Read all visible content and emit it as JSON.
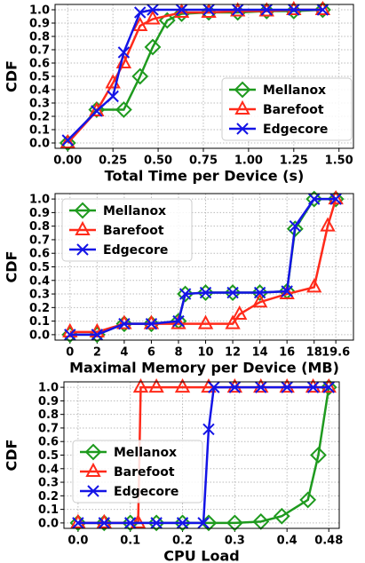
{
  "chart_data": [
    {
      "type": "line",
      "xlabel": "Total Time per Device (s)",
      "ylabel": "CDF",
      "legend": "lower right",
      "grid": true,
      "xlim": [
        -0.07,
        1.58
      ],
      "ylim": [
        -0.04,
        1.04
      ],
      "xticks": [
        {
          "value": 0,
          "label": "0.00"
        },
        {
          "value": 0.25,
          "label": "0.25"
        },
        {
          "value": 0.5,
          "label": "0.50"
        },
        {
          "value": 0.75,
          "label": "0.75"
        },
        {
          "value": 1,
          "label": "1.00"
        },
        {
          "value": 1.25,
          "label": "1.25"
        },
        {
          "value": 1.5,
          "label": "1.50"
        }
      ],
      "yticks": [
        {
          "value": 0,
          "label": "0.0"
        },
        0.1,
        0.2,
        0.3,
        0.4,
        0.5,
        0.6,
        0.7,
        0.8,
        0.9,
        {
          "value": 1,
          "label": "1.0"
        }
      ],
      "series": [
        {
          "name": "Mellanox",
          "color": "#1e9a1e",
          "marker": "diamond",
          "x": [
            0,
            0.16,
            0.31,
            0.4,
            0.47,
            0.55,
            0.63,
            0.78,
            0.94,
            1.1,
            1.25,
            1.41
          ],
          "values": [
            0,
            0.25,
            0.25,
            0.5,
            0.72,
            0.92,
            0.97,
            0.98,
            0.98,
            0.99,
            0.99,
            1.0
          ]
        },
        {
          "name": "Barefoot",
          "color": "#ff2a1a",
          "marker": "triangle",
          "x": [
            0,
            0.16,
            0.25,
            0.31,
            0.4,
            0.47,
            0.63,
            0.78,
            0.94,
            1.1,
            1.25,
            1.41
          ],
          "values": [
            0,
            0.24,
            0.45,
            0.6,
            0.88,
            0.93,
            0.98,
            0.98,
            0.99,
            0.99,
            1.0,
            1.0
          ]
        },
        {
          "name": "Edgecore",
          "color": "#1414e6",
          "marker": "x",
          "x": [
            0,
            0.16,
            0.25,
            0.31,
            0.4,
            0.47,
            0.63,
            0.78,
            0.94,
            1.1,
            1.25,
            1.41
          ],
          "values": [
            0.02,
            0.24,
            0.35,
            0.68,
            0.98,
            1.0,
            1.0,
            1.0,
            1.0,
            1.0,
            1.0,
            1.0
          ]
        }
      ]
    },
    {
      "type": "line",
      "xlabel": "Maximal Memory per Device (MB)",
      "ylabel": "CDF",
      "legend": "upper left",
      "grid": true,
      "xlim": [
        -1.1,
        20.9
      ],
      "ylim": [
        -0.04,
        1.04
      ],
      "xticks": [
        0,
        2,
        4,
        6,
        8,
        10,
        12,
        14,
        16,
        18,
        19.6
      ],
      "yticks": [
        {
          "value": 0,
          "label": "0.0"
        },
        0.1,
        0.2,
        0.3,
        0.4,
        0.5,
        0.6,
        0.7,
        0.8,
        0.9,
        {
          "value": 1,
          "label": "1.0"
        }
      ],
      "series": [
        {
          "name": "Mellanox",
          "color": "#1e9a1e",
          "marker": "diamond",
          "x": [
            0,
            2,
            4,
            6,
            8,
            8.5,
            10,
            12,
            14,
            16,
            16.6,
            18,
            19.6
          ],
          "values": [
            0,
            0,
            0.08,
            0.08,
            0.1,
            0.3,
            0.31,
            0.31,
            0.31,
            0.32,
            0.78,
            1.0,
            1.0
          ]
        },
        {
          "name": "Barefoot",
          "color": "#ff2a1a",
          "marker": "triangle",
          "x": [
            0,
            2,
            4,
            6,
            8,
            10,
            12,
            12.5,
            14,
            16,
            18,
            19,
            19.6
          ],
          "values": [
            0.02,
            0.02,
            0.08,
            0.08,
            0.08,
            0.08,
            0.08,
            0.15,
            0.24,
            0.3,
            0.35,
            0.8,
            1.0
          ]
        },
        {
          "name": "Edgecore",
          "color": "#1414e6",
          "marker": "x",
          "x": [
            0,
            2,
            4,
            6,
            8,
            8.5,
            10,
            12,
            14,
            16,
            16.6,
            18,
            19.6
          ],
          "values": [
            0,
            0,
            0.08,
            0.08,
            0.1,
            0.3,
            0.31,
            0.31,
            0.31,
            0.32,
            0.8,
            1.0,
            1.0
          ]
        }
      ]
    },
    {
      "type": "line",
      "xlabel": "CPU Load",
      "ylabel": "CDF",
      "legend": "center left",
      "grid": true,
      "xlim": [
        -0.027,
        0.5
      ],
      "ylim": [
        -0.04,
        1.04
      ],
      "xticks": [
        {
          "value": 0,
          "label": "0.0"
        },
        0.1,
        0.2,
        0.3,
        0.4,
        0.48
      ],
      "yticks": [
        {
          "value": 0,
          "label": "0.0"
        },
        0.1,
        0.2,
        0.3,
        0.4,
        0.5,
        0.6,
        0.7,
        0.8,
        0.9,
        {
          "value": 1,
          "label": "1.0"
        }
      ],
      "series": [
        {
          "name": "Mellanox",
          "color": "#1e9a1e",
          "marker": "diamond",
          "x": [
            0,
            0.05,
            0.1,
            0.15,
            0.2,
            0.25,
            0.3,
            0.35,
            0.39,
            0.44,
            0.46,
            0.48
          ],
          "values": [
            0,
            0,
            0,
            0,
            0,
            0,
            0,
            0.01,
            0.05,
            0.17,
            0.5,
            1.0
          ]
        },
        {
          "name": "Barefoot",
          "color": "#ff2a1a",
          "marker": "triangle",
          "x": [
            0,
            0.05,
            0.115,
            0.12,
            0.15,
            0.2,
            0.25,
            0.3,
            0.35,
            0.4,
            0.45,
            0.48
          ],
          "values": [
            0,
            0,
            0,
            1,
            1,
            1,
            1,
            1,
            1,
            1,
            1,
            1
          ]
        },
        {
          "name": "Edgecore",
          "color": "#1414e6",
          "marker": "x",
          "x": [
            0,
            0.05,
            0.1,
            0.15,
            0.2,
            0.24,
            0.25,
            0.26,
            0.3,
            0.35,
            0.4,
            0.45,
            0.48
          ],
          "values": [
            0,
            0,
            0,
            0,
            0,
            0,
            0.69,
            1,
            1,
            1,
            1,
            1,
            1
          ]
        }
      ]
    }
  ]
}
